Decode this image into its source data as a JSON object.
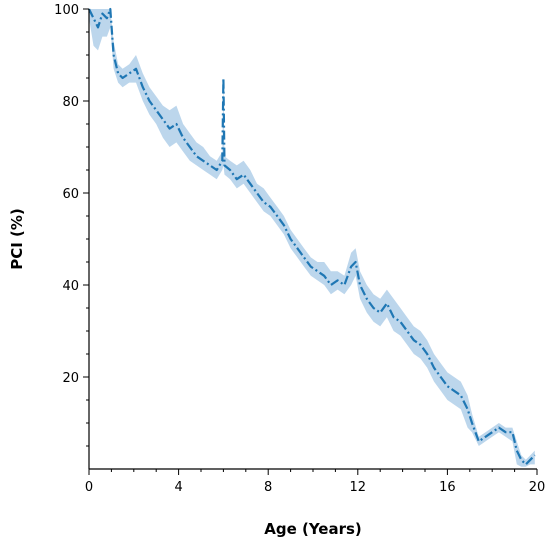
{
  "chart_data": {
    "type": "line",
    "title": "",
    "xlabel": "Age (Years)",
    "ylabel": "PCI (%)",
    "xlim": [
      0,
      20
    ],
    "ylim": [
      0,
      100
    ],
    "xticks": [
      0,
      4,
      8,
      12,
      16,
      20
    ],
    "yticks": [
      20,
      40,
      60,
      80,
      100
    ],
    "grid": false,
    "legend": "none",
    "series": [
      {
        "color": "#1f77b4",
        "band_color": "#a6c8e6",
        "line_style": "dash-dot",
        "x": [
          0,
          0.2,
          0.4,
          0.6,
          0.8,
          0.95,
          1.1,
          1.3,
          1.5,
          1.8,
          2.1,
          2.4,
          2.7,
          3.0,
          3.3,
          3.6,
          3.9,
          4.2,
          4.5,
          4.8,
          5.1,
          5.4,
          5.7,
          5.95,
          6.0,
          6.05,
          6.3,
          6.6,
          6.9,
          7.2,
          7.5,
          7.8,
          8.1,
          8.4,
          8.7,
          9.0,
          9.3,
          9.6,
          9.9,
          10.2,
          10.5,
          10.8,
          11.1,
          11.4,
          11.7,
          11.9,
          12.1,
          12.4,
          12.7,
          13.0,
          13.3,
          13.6,
          13.9,
          14.2,
          14.5,
          14.8,
          15.1,
          15.4,
          15.7,
          16.0,
          16.3,
          16.6,
          16.9,
          17.1,
          17.4,
          17.7,
          18.0,
          18.3,
          18.6,
          18.9,
          19.1,
          19.3,
          19.5,
          19.7,
          19.9
        ],
        "y": [
          100,
          98,
          96,
          99,
          98,
          100,
          90,
          86,
          85,
          86,
          87,
          83,
          80,
          78,
          76,
          74,
          75,
          72,
          70,
          68,
          67,
          66,
          65,
          67,
          85,
          66,
          65,
          63,
          64,
          62,
          60,
          58,
          57,
          55,
          53,
          50,
          48,
          46,
          44,
          43,
          42,
          40,
          41,
          40,
          44,
          45,
          40,
          37,
          35,
          34,
          36,
          33,
          32,
          30,
          28,
          27,
          25,
          22,
          20,
          18,
          17,
          16,
          13,
          10,
          6,
          7,
          8,
          9,
          8,
          8,
          4,
          2,
          1,
          2,
          3
        ],
        "lower": [
          98,
          92,
          91,
          94,
          94,
          96,
          87,
          84,
          83,
          84,
          84,
          80,
          77,
          75,
          72,
          70,
          71,
          69,
          67,
          66,
          65,
          64,
          63,
          65,
          66,
          64,
          63,
          61,
          62,
          60,
          58,
          56,
          55,
          53,
          51,
          48,
          46,
          44,
          42,
          41,
          40,
          38,
          39,
          38,
          40,
          42,
          37,
          34,
          32,
          31,
          33,
          30,
          29,
          27,
          25,
          24,
          22,
          19,
          17,
          15,
          14,
          13,
          9,
          8,
          5,
          6,
          7,
          8,
          7,
          6,
          1,
          0.5,
          0.5,
          1,
          1
        ],
        "upper": [
          100,
          100,
          100,
          100,
          100,
          100,
          93,
          88,
          87,
          88,
          90,
          86,
          83,
          81,
          79,
          78,
          79,
          75,
          73,
          71,
          70,
          68,
          67,
          69,
          85,
          68,
          67,
          66,
          67,
          65,
          62,
          61,
          59,
          57,
          55,
          52,
          50,
          48,
          46,
          45,
          45,
          43,
          43,
          42,
          47,
          48,
          43,
          40,
          38,
          37,
          39,
          37,
          35,
          33,
          31,
          30,
          28,
          25,
          23,
          21,
          20,
          19,
          16,
          12,
          7,
          8,
          9,
          10,
          9,
          9,
          6,
          3,
          2,
          3,
          4
        ]
      }
    ]
  }
}
